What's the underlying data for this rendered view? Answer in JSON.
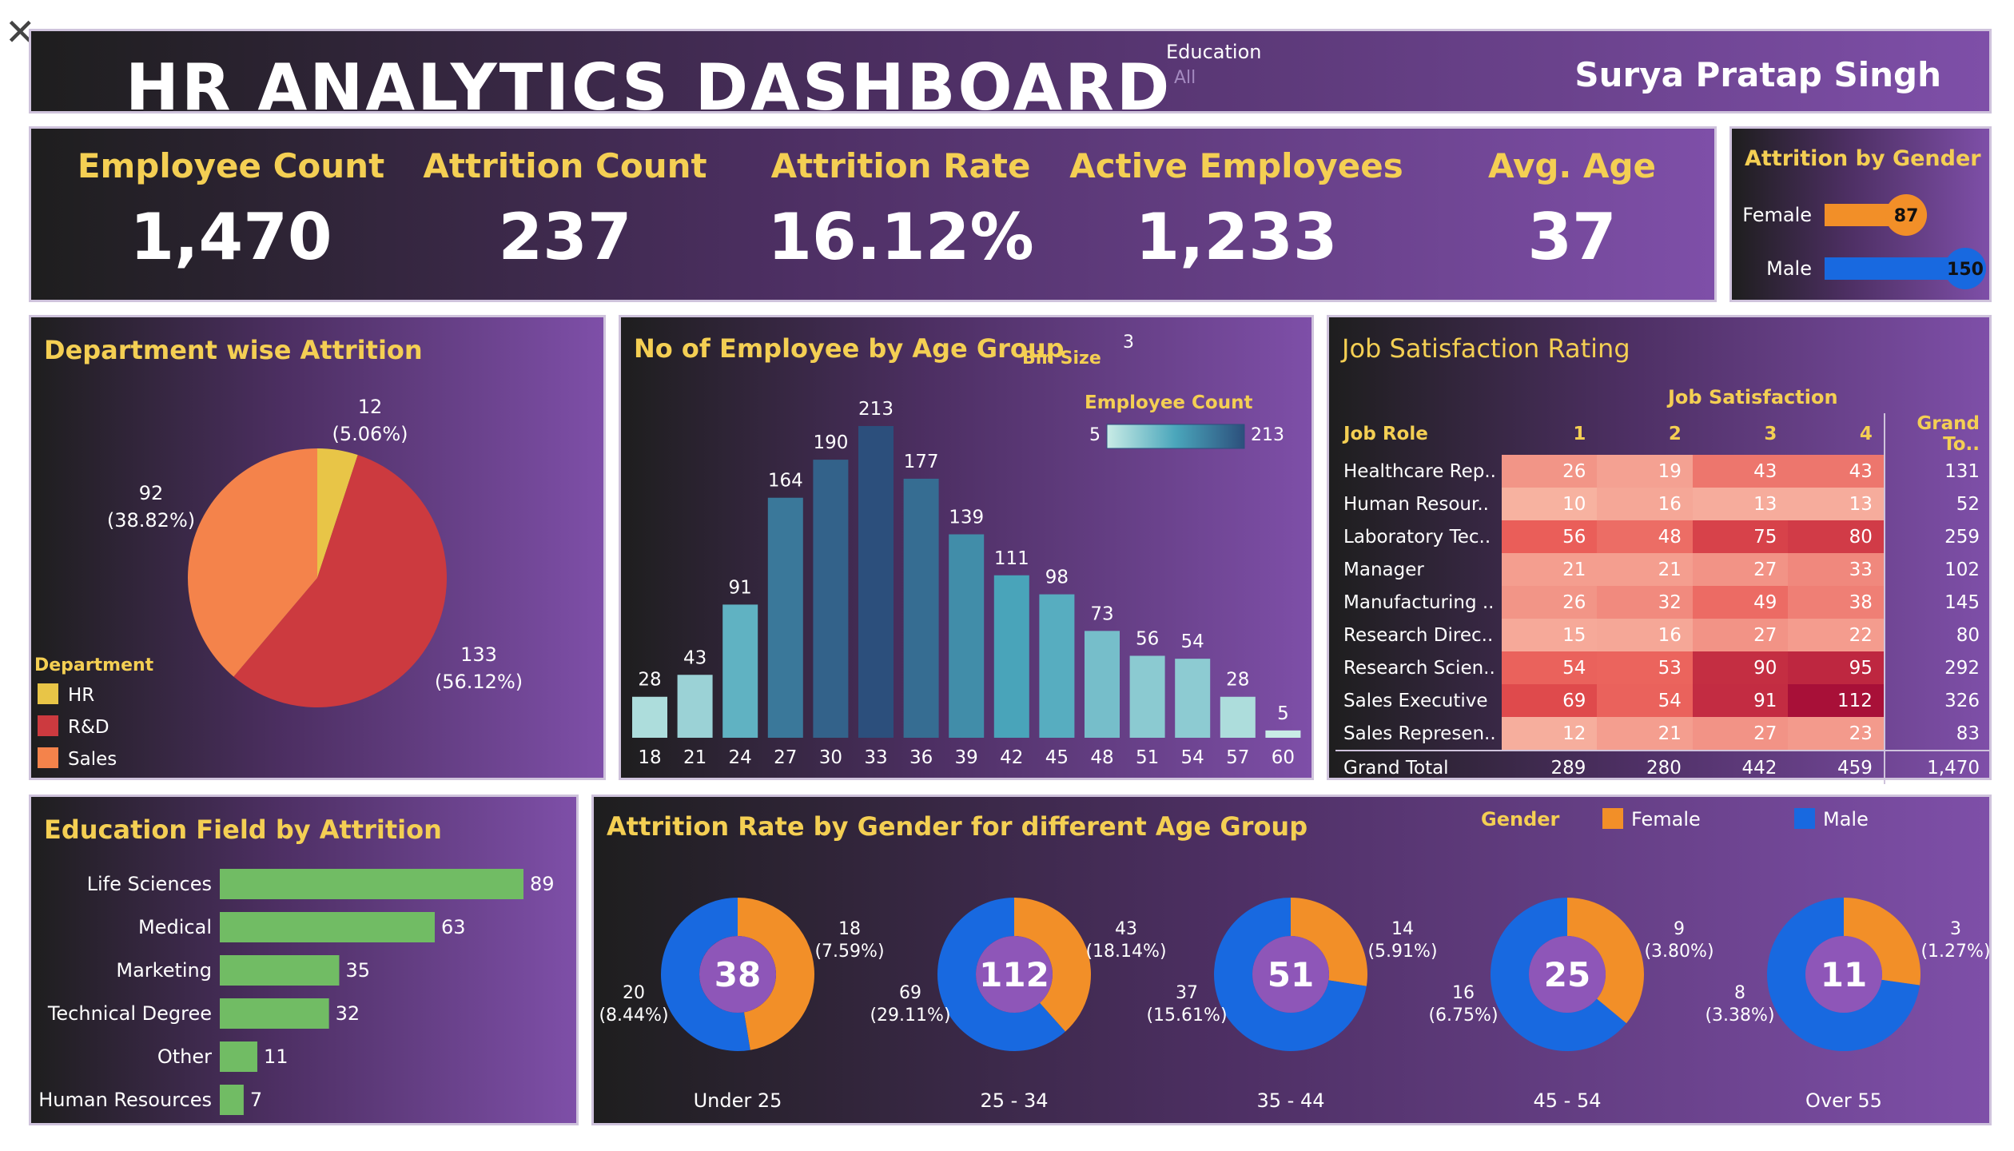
{
  "header": {
    "title": "HR ANALYTICS DASHBOARD",
    "filter_label": "Education",
    "filter_value": "All",
    "author": "Surya Pratap Singh"
  },
  "kpis": [
    {
      "label": "Employee Count",
      "value": "1,470"
    },
    {
      "label": "Attrition Count",
      "value": "237"
    },
    {
      "label": "Attrition Rate",
      "value": "16.12%"
    },
    {
      "label": "Active Employees",
      "value": "1,233"
    },
    {
      "label": "Avg. Age",
      "value": "37"
    }
  ],
  "colors": {
    "hr": "#e8c547",
    "rnd": "#cc3a3f",
    "sales": "#f4834b",
    "female": "#f28f28",
    "male": "#1869e0",
    "edu_bar": "#71bc64",
    "title_yellow": "#f4cf53"
  },
  "chart_data": [
    {
      "id": "gender_attrition",
      "type": "bar",
      "title": "Attrition by Gender",
      "categories": [
        "Female",
        "Male"
      ],
      "values": [
        87,
        150
      ],
      "xlim": [
        0,
        150
      ]
    },
    {
      "id": "department_attrition",
      "type": "pie",
      "title": "Department wise Attrition",
      "legend_title": "Department",
      "categories": [
        "HR",
        "R&D",
        "Sales"
      ],
      "values": [
        12,
        133,
        92
      ],
      "labels": [
        "(5.06%)",
        "(56.12%)",
        "(38.82%)"
      ]
    },
    {
      "id": "age_group",
      "type": "bar",
      "title": "No of Employee by Age Group",
      "bin_size_label": "Bin Size",
      "bin_size": "3",
      "legend_title": "Employee Count",
      "legend_min": "5",
      "legend_max": "213",
      "categories": [
        "18",
        "21",
        "24",
        "27",
        "30",
        "33",
        "36",
        "39",
        "42",
        "45",
        "48",
        "51",
        "54",
        "57",
        "60"
      ],
      "values": [
        28,
        43,
        91,
        164,
        190,
        213,
        177,
        139,
        111,
        98,
        73,
        56,
        54,
        28,
        5
      ],
      "ylim": [
        0,
        213
      ]
    },
    {
      "id": "job_satisfaction",
      "type": "table",
      "title": "Job Satisfaction Rating",
      "group_header": "Job Satisfaction",
      "row_header": "Job Role",
      "columns": [
        "1",
        "2",
        "3",
        "4"
      ],
      "total_header": "Grand To..",
      "rows": [
        {
          "role": "Healthcare Rep..",
          "values": [
            26,
            19,
            43,
            43
          ],
          "total": "131"
        },
        {
          "role": "Human Resour..",
          "values": [
            10,
            16,
            13,
            13
          ],
          "total": "52"
        },
        {
          "role": "Laboratory Tec..",
          "values": [
            56,
            48,
            75,
            80
          ],
          "total": "259"
        },
        {
          "role": "Manager",
          "values": [
            21,
            21,
            27,
            33
          ],
          "total": "102"
        },
        {
          "role": "Manufacturing ..",
          "values": [
            26,
            32,
            49,
            38
          ],
          "total": "145"
        },
        {
          "role": "Research Direc..",
          "values": [
            15,
            16,
            27,
            22
          ],
          "total": "80"
        },
        {
          "role": "Research Scien..",
          "values": [
            54,
            53,
            90,
            95
          ],
          "total": "292"
        },
        {
          "role": "Sales Executive",
          "values": [
            69,
            54,
            91,
            112
          ],
          "total": "326"
        },
        {
          "role": "Sales Represen..",
          "values": [
            12,
            21,
            27,
            23
          ],
          "total": "83"
        }
      ],
      "grand_total": {
        "label": "Grand Total",
        "values": [
          "289",
          "280",
          "442",
          "459"
        ],
        "total": "1,470"
      }
    },
    {
      "id": "education_field",
      "type": "bar",
      "title": "Education Field by Attrition",
      "categories": [
        "Life Sciences",
        "Medical",
        "Marketing",
        "Technical Degree",
        "Other",
        "Human Resources"
      ],
      "values": [
        89,
        63,
        35,
        32,
        11,
        7
      ],
      "xlim": [
        0,
        89
      ]
    },
    {
      "id": "gender_age_attrition",
      "type": "pie",
      "title": "Attrition Rate by Gender for different Age Group",
      "legend_title": "Gender",
      "legend": [
        "Female",
        "Male"
      ],
      "groups": [
        {
          "label": "Under 25",
          "total": "38",
          "female": 18,
          "male": 20,
          "female_label": "(7.59%)",
          "male_label": "(8.44%)"
        },
        {
          "label": "25 - 34",
          "total": "112",
          "female": 43,
          "male": 69,
          "female_label": "(18.14%)",
          "male_label": "(29.11%)"
        },
        {
          "label": "35 - 44",
          "total": "51",
          "female": 14,
          "male": 37,
          "female_label": "(5.91%)",
          "male_label": "(15.61%)"
        },
        {
          "label": "45 - 54",
          "total": "25",
          "female": 9,
          "male": 16,
          "female_label": "(3.80%)",
          "male_label": "(6.75%)"
        },
        {
          "label": "Over 55",
          "total": "11",
          "female": 3,
          "male": 8,
          "female_label": "(1.27%)",
          "male_label": "(3.38%)"
        }
      ]
    }
  ]
}
